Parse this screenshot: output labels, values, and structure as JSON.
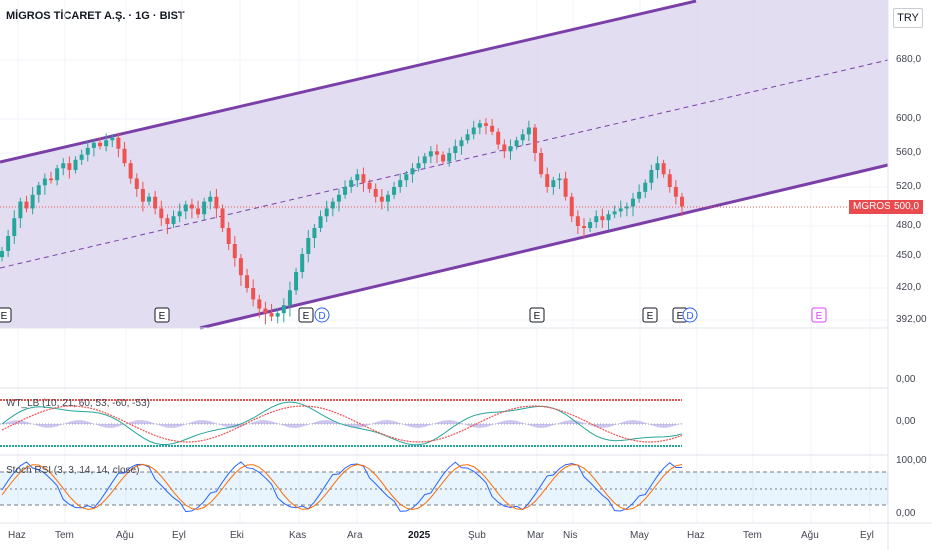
{
  "header": {
    "symbol_title": "MİGROS TİCARET A.Ş. · 1G · BIST",
    "currency_button": "TRY"
  },
  "price_scale": {
    "labels": [
      "680,0",
      "600,0",
      "560,0",
      "520,0",
      "480,0",
      "450,0",
      "420,0",
      "392,00"
    ],
    "values": [
      680,
      600,
      560,
      520,
      480,
      450,
      420,
      392
    ]
  },
  "last_price": {
    "ticker": "MGROS",
    "value": "500,0"
  },
  "event_markers": [
    {
      "kind": "E",
      "date_index": 0
    },
    {
      "kind": "E",
      "date_index": 2
    },
    {
      "kind": "E",
      "date_index": 4
    },
    {
      "kind": "D",
      "date_index": 4
    },
    {
      "kind": "E",
      "date_index": 9
    },
    {
      "kind": "E",
      "date_index": 11
    },
    {
      "kind": "E",
      "date_index": 11
    },
    {
      "kind": "D",
      "date_index": 11
    },
    {
      "kind": "E",
      "date_index": 14
    }
  ],
  "volume_pane": {
    "scale_label": "0,00"
  },
  "wt_pane": {
    "label": "WT_LB (10, 21, 60, 53, -60, -53)",
    "scale_label": "0,00"
  },
  "stoch_pane": {
    "label": "Stoch RSI (3, 3, 14, 14, close)",
    "scale_top": "100,00",
    "scale_bottom": "0,00"
  },
  "time_axis": {
    "labels": [
      "Haz",
      "Tem",
      "Ağu",
      "Eyl",
      "Eki",
      "Kas",
      "Ara",
      "2025",
      "Şub",
      "Mar",
      "Nis",
      "May",
      "Haz",
      "Tem",
      "Ağu",
      "Eyl"
    ]
  },
  "colors": {
    "up": "#26a69a",
    "down": "#ef5350",
    "channel": "#7b3fa8",
    "channel_fill": "#d9d2ee",
    "badge": "#e84a4e",
    "stoch_k": "#2962ff",
    "stoch_d": "#ff6d00"
  },
  "chart_data": {
    "type": "candlestick",
    "ylim": [
      392,
      720
    ],
    "closes": [
      455,
      470,
      488,
      505,
      498,
      512,
      522,
      530,
      528,
      542,
      548,
      540,
      552,
      558,
      566,
      572,
      568,
      575,
      578,
      565,
      548,
      530,
      518,
      505,
      510,
      498,
      488,
      482,
      490,
      495,
      502,
      498,
      492,
      505,
      510,
      498,
      478,
      462,
      448,
      432,
      420,
      410,
      402,
      398,
      395,
      398,
      405,
      418,
      435,
      452,
      468,
      478,
      490,
      498,
      505,
      512,
      520,
      528,
      535,
      525,
      518,
      510,
      505,
      512,
      520,
      528,
      535,
      542,
      548,
      556,
      562,
      558,
      550,
      560,
      568,
      575,
      582,
      590,
      595,
      592,
      585,
      570,
      562,
      568,
      575,
      582,
      590,
      560,
      535,
      520,
      528,
      530,
      510,
      490,
      480,
      478,
      484,
      490,
      486,
      492,
      495,
      498,
      500,
      508,
      515,
      525,
      540,
      548,
      535,
      520,
      510,
      500
    ]
  }
}
